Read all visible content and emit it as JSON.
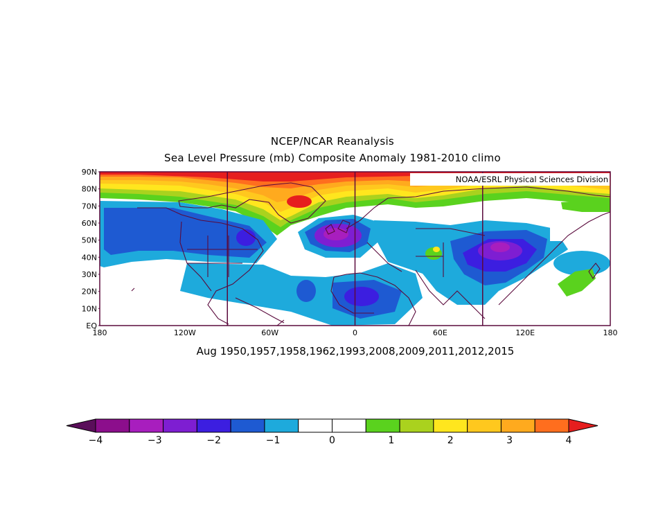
{
  "title_line1": "NCEP/NCAR Reanalysis",
  "title_line2": "Sea Level Pressure (mb) Composite Anomaly 1981-2010 climo",
  "credit": "NOAA/ESRL Physical Sciences Division",
  "subtitle": "Aug 1950,1957,1958,1962,1993,2008,2009,2011,2012,2015",
  "lat_labels": [
    "90N",
    "80N",
    "70N",
    "60N",
    "50N",
    "40N",
    "30N",
    "20N",
    "10N",
    "EQ"
  ],
  "lon_labels": [
    "180",
    "120W",
    "60W",
    "0",
    "60E",
    "120E",
    "180"
  ],
  "colorbar": {
    "colors": [
      "#5a0e5a",
      "#8c0e8c",
      "#a81ebe",
      "#7e1ed2",
      "#3c1ee0",
      "#1e5ad2",
      "#1eaadc",
      "#ffffff",
      "#ffffff",
      "#5ad21e",
      "#aad21e",
      "#ffe61e",
      "#ffc81e",
      "#ffaa1e",
      "#ff6e1e",
      "#e61e1e"
    ],
    "labels": [
      "-4",
      "-3",
      "-2",
      "-1",
      "0",
      "1",
      "2",
      "3",
      "4"
    ],
    "label_values": [
      -4,
      -3,
      -2,
      -1,
      0,
      1,
      2,
      3,
      4
    ]
  },
  "colors": {
    "coast": "#5a0a3c",
    "frame": "#5a0a3c"
  }
}
